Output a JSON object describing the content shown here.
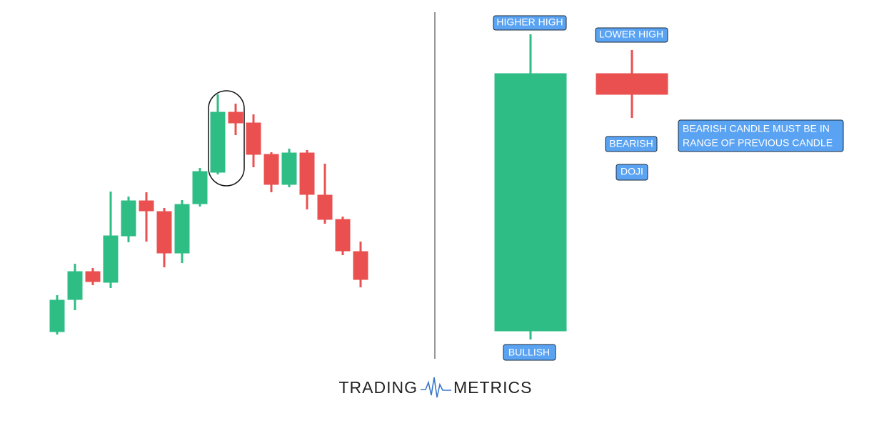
{
  "labels": {
    "higher_high": "HIGHER HIGH",
    "lower_high": "LOWER HIGH",
    "bearish": "BEARISH",
    "doji": "DOJI",
    "rule_lines": [
      "BEARISH CANDLE MUST BE IN",
      "RANGE OF PREVIOUS CANDLE"
    ],
    "bullish": "BULLISH"
  },
  "logo": {
    "left": "TRADING",
    "right": "METRICS"
  }
}
